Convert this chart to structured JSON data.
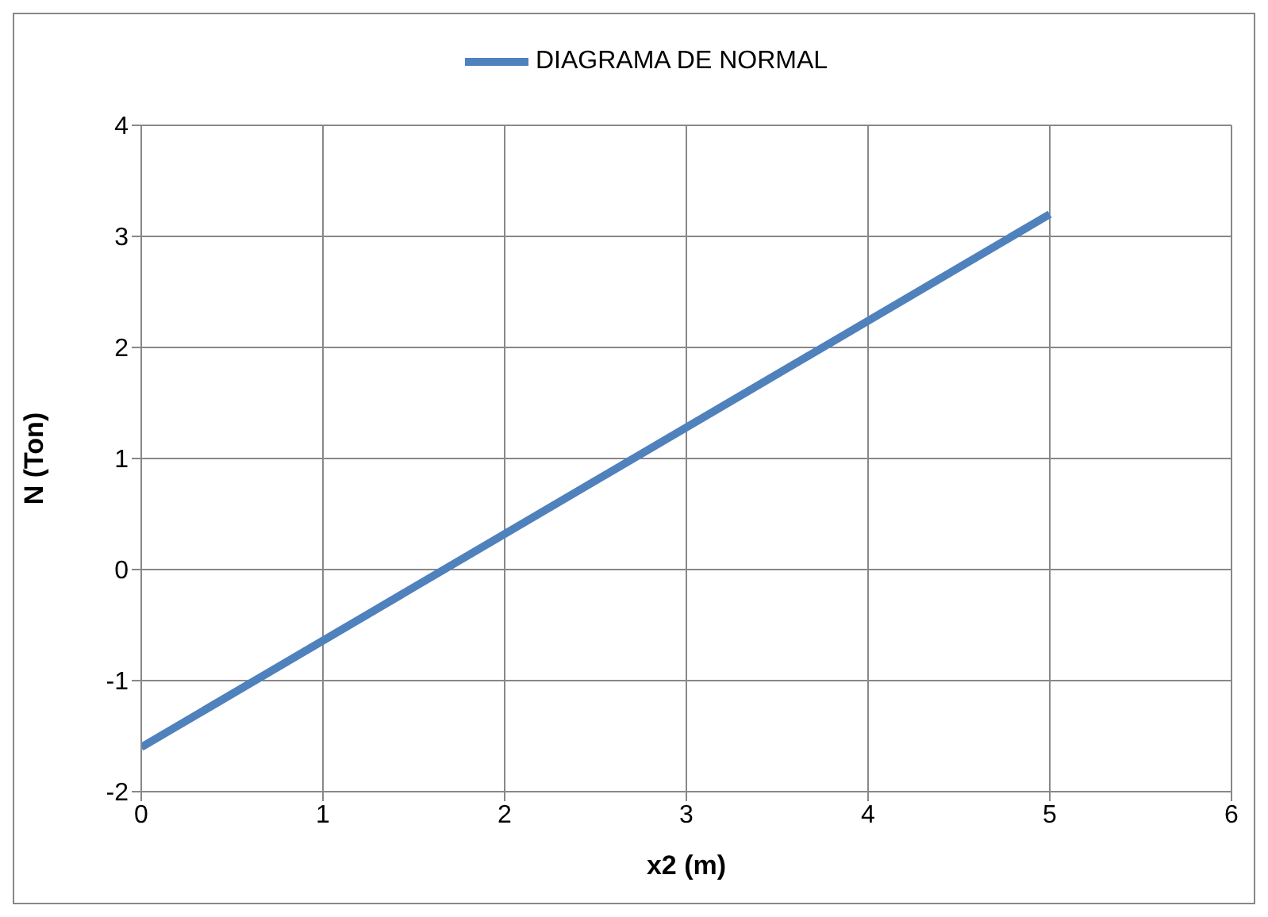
{
  "chart_data": {
    "type": "line",
    "xlabel": "x2 (m)",
    "ylabel": "N (Ton)",
    "x": [
      0,
      5
    ],
    "series": [
      {
        "name": "DIAGRAMA DE NORMAL",
        "color": "#4f81bd",
        "values": [
          -1.6,
          3.2
        ]
      }
    ],
    "xlim": [
      0,
      6
    ],
    "xticks": [
      0,
      1,
      2,
      3,
      4,
      5,
      6
    ],
    "ylim": [
      -2,
      4
    ],
    "yticks": [
      -2,
      -1,
      0,
      1,
      2,
      3,
      4
    ],
    "grid": true,
    "legend": "top",
    "marker": "none",
    "line_style": "solid"
  }
}
